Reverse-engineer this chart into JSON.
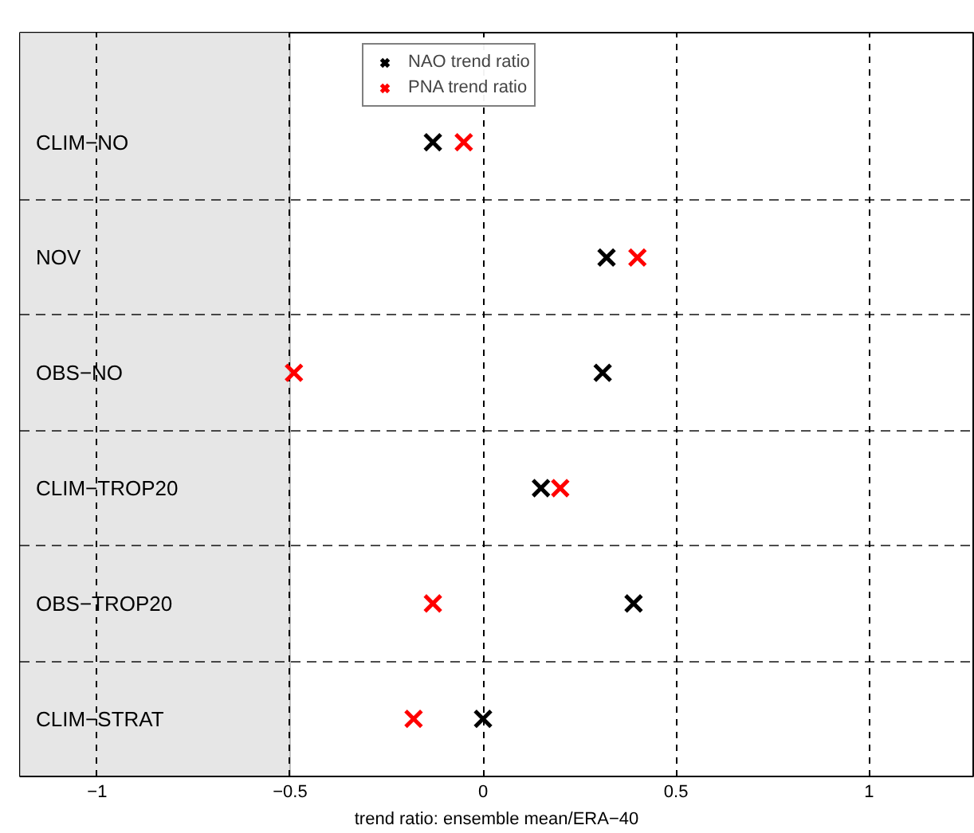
{
  "chart_data": {
    "type": "scatter",
    "orientation": "horizontal",
    "xlabel": "trend ratio: ensemble mean/ERA−40",
    "categories": [
      "CLIM−NO",
      "NOV",
      "OBS−NO",
      "CLIM−TROP20",
      "OBS−TROP20",
      "CLIM−STRAT"
    ],
    "series": [
      {
        "name": "NAO trend ratio",
        "color": "#000000",
        "values": [
          -0.13,
          0.32,
          0.31,
          0.15,
          0.39,
          0.0
        ]
      },
      {
        "name": "PNA trend ratio",
        "color": "#ff0000",
        "values": [
          -0.05,
          0.4,
          -0.49,
          0.2,
          -0.13,
          -0.18
        ]
      }
    ],
    "xlim": [
      -1.2,
      1.27
    ],
    "xticks": [
      -1,
      -0.5,
      0,
      0.5,
      1
    ],
    "bands": [
      {
        "axis": "x",
        "from": -1.2,
        "to": -0.5,
        "color": "#e6e6e6"
      }
    ],
    "grid": true,
    "legend": "top",
    "marker": "cross"
  }
}
